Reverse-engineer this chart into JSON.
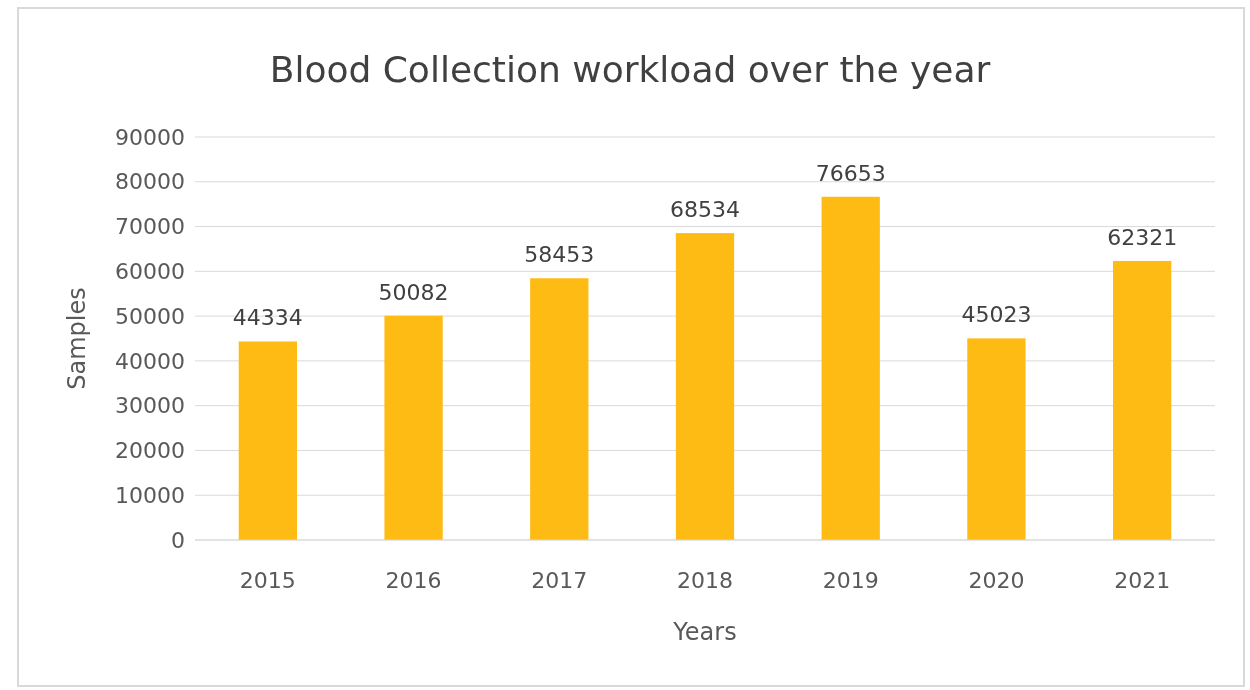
{
  "chart_data": {
    "type": "bar",
    "title": "Blood Collection workload over the year",
    "xlabel": "Years",
    "ylabel": "Samples",
    "categories": [
      "2015",
      "2016",
      "2017",
      "2018",
      "2019",
      "2020",
      "2021"
    ],
    "values": [
      44334,
      50082,
      58453,
      68534,
      76653,
      45023,
      62321
    ],
    "color": "#fdbb14",
    "ylim": [
      0,
      90000
    ],
    "yticks": [
      0,
      10000,
      20000,
      30000,
      40000,
      50000,
      60000,
      70000,
      80000,
      90000
    ],
    "grid": "y",
    "data_labels": true
  }
}
